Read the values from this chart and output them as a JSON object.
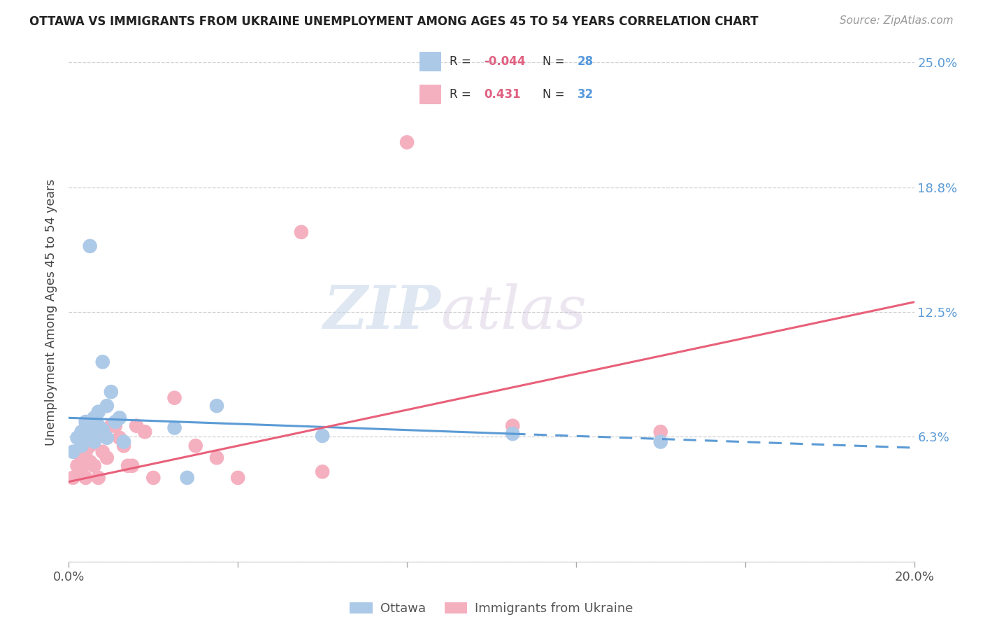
{
  "title": "OTTAWA VS IMMIGRANTS FROM UKRAINE UNEMPLOYMENT AMONG AGES 45 TO 54 YEARS CORRELATION CHART",
  "source": "Source: ZipAtlas.com",
  "ylabel": "Unemployment Among Ages 45 to 54 years",
  "xlim": [
    0.0,
    0.2
  ],
  "ylim": [
    0.0,
    0.25
  ],
  "watermark_zip": "ZIP",
  "watermark_atlas": "atlas",
  "legend_labels": [
    "Ottawa",
    "Immigrants from Ukraine"
  ],
  "ottawa_color": "#adc9e8",
  "ukraine_color": "#f5b0c0",
  "ottawa_line_color": "#5b9bd5",
  "ukraine_line_color": "#e8607a",
  "background_color": "#ffffff",
  "grid_color": "#d0d0d0",
  "ottawa_x": [
    0.001,
    0.002,
    0.003,
    0.003,
    0.004,
    0.004,
    0.005,
    0.005,
    0.005,
    0.006,
    0.006,
    0.006,
    0.007,
    0.007,
    0.008,
    0.008,
    0.009,
    0.009,
    0.01,
    0.011,
    0.012,
    0.013,
    0.025,
    0.028,
    0.035,
    0.06,
    0.105,
    0.14
  ],
  "ottawa_y": [
    0.055,
    0.062,
    0.065,
    0.058,
    0.07,
    0.064,
    0.068,
    0.062,
    0.158,
    0.072,
    0.066,
    0.06,
    0.075,
    0.068,
    0.1,
    0.066,
    0.078,
    0.062,
    0.085,
    0.07,
    0.072,
    0.06,
    0.067,
    0.042,
    0.078,
    0.063,
    0.064,
    0.06
  ],
  "ukraine_x": [
    0.001,
    0.002,
    0.003,
    0.003,
    0.004,
    0.004,
    0.005,
    0.005,
    0.006,
    0.006,
    0.007,
    0.007,
    0.008,
    0.009,
    0.01,
    0.011,
    0.012,
    0.013,
    0.014,
    0.015,
    0.016,
    0.018,
    0.02,
    0.025,
    0.03,
    0.035,
    0.04,
    0.055,
    0.06,
    0.08,
    0.105,
    0.14
  ],
  "ukraine_y": [
    0.042,
    0.048,
    0.045,
    0.052,
    0.042,
    0.055,
    0.05,
    0.058,
    0.048,
    0.062,
    0.042,
    0.065,
    0.055,
    0.052,
    0.068,
    0.068,
    0.062,
    0.058,
    0.048,
    0.048,
    0.068,
    0.065,
    0.042,
    0.082,
    0.058,
    0.052,
    0.042,
    0.165,
    0.045,
    0.21,
    0.068,
    0.065
  ],
  "ottawa_line_x": [
    0.0,
    0.105,
    0.2
  ],
  "ottawa_line_y_start": 0.072,
  "ottawa_line_y_mid": 0.064,
  "ottawa_line_y_end": 0.057,
  "ukraine_line_x_start": 0.0,
  "ukraine_line_x_end": 0.2,
  "ukraine_line_y_start": 0.04,
  "ukraine_line_y_end": 0.13,
  "r1_val": "-0.044",
  "n1_val": "28",
  "r2_val": "0.431",
  "n2_val": "32"
}
